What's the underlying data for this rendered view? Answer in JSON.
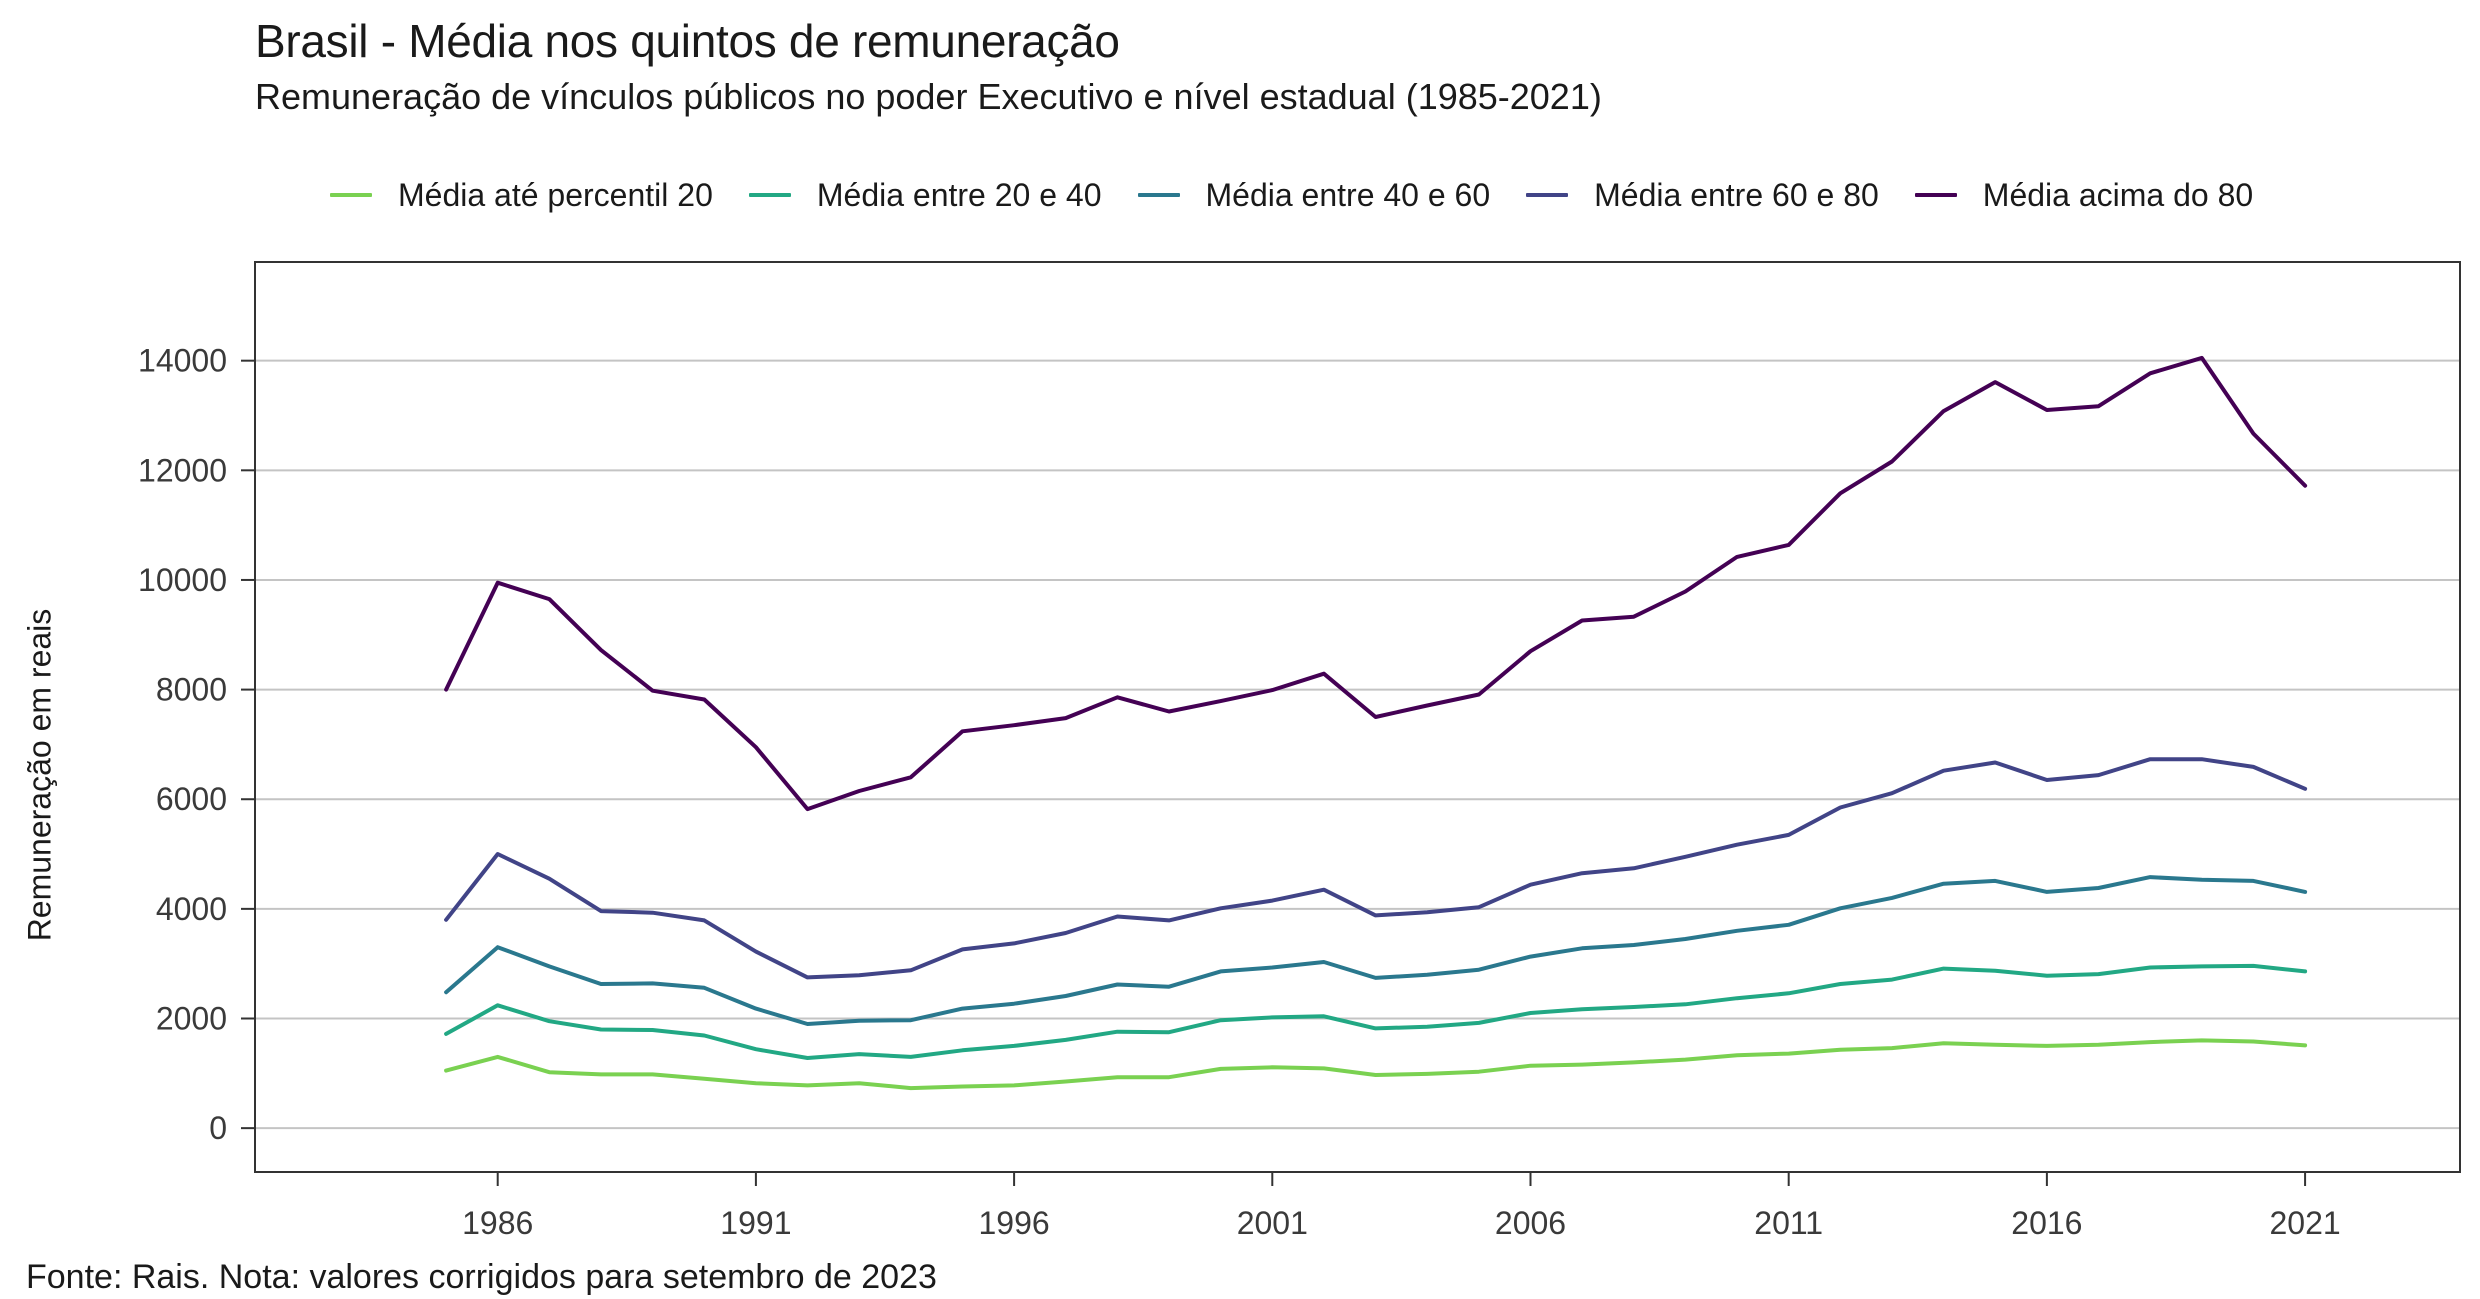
{
  "title": "Brasil - Média nos quintos de remuneração",
  "subtitle": "Remuneração de vínculos públicos no poder Executivo e nível estadual (1985-2021)",
  "caption": "Fonte: Rais. Nota: valores corrigidos para setembro de 2023",
  "chart_data": {
    "type": "line",
    "title": "Brasil - Média nos quintos de remuneração",
    "subtitle": "Remuneração de vínculos públicos no poder Executivo e nível estadual (1985-2021)",
    "xlabel": "",
    "ylabel": "Remuneração em reais",
    "xlim": [
      1981.3,
      2024.0
    ],
    "ylim": [
      -800,
      15800
    ],
    "xticks": [
      1986,
      1991,
      1996,
      2001,
      2006,
      2011,
      2016,
      2021
    ],
    "yticks": [
      0,
      2000,
      4000,
      6000,
      8000,
      10000,
      12000,
      14000
    ],
    "grid": "horizontal",
    "legend_position": "top",
    "x": [
      1985,
      1986,
      1987,
      1988,
      1989,
      1990,
      1991,
      1992,
      1993,
      1994,
      1995,
      1996,
      1997,
      1998,
      1999,
      2000,
      2001,
      2002,
      2003,
      2004,
      2005,
      2006,
      2007,
      2008,
      2009,
      2010,
      2011,
      2012,
      2013,
      2014,
      2015,
      2016,
      2017,
      2018,
      2019,
      2020,
      2021
    ],
    "series": [
      {
        "name": "Média até percentil 20",
        "color": "#7ad151",
        "values": [
          1050,
          1300,
          1020,
          980,
          980,
          900,
          820,
          780,
          820,
          730,
          760,
          780,
          850,
          930,
          930,
          1080,
          1110,
          1090,
          970,
          990,
          1030,
          1140,
          1160,
          1200,
          1250,
          1330,
          1360,
          1430,
          1460,
          1550,
          1520,
          1500,
          1520,
          1570,
          1600,
          1580,
          1510
        ]
      },
      {
        "name": "Média entre 20 e 40",
        "color": "#22a884",
        "values": [
          1720,
          2240,
          1950,
          1800,
          1790,
          1690,
          1440,
          1280,
          1350,
          1300,
          1420,
          1500,
          1610,
          1760,
          1750,
          1970,
          2020,
          2040,
          1820,
          1850,
          1920,
          2100,
          2170,
          2210,
          2260,
          2370,
          2460,
          2630,
          2710,
          2910,
          2870,
          2780,
          2810,
          2930,
          2950,
          2960,
          2860
        ]
      },
      {
        "name": "Média entre 40 e 60",
        "color": "#2a788e",
        "values": [
          2480,
          3300,
          2950,
          2630,
          2640,
          2560,
          2180,
          1900,
          1960,
          1970,
          2180,
          2270,
          2410,
          2620,
          2580,
          2860,
          2930,
          3030,
          2740,
          2800,
          2890,
          3130,
          3280,
          3340,
          3450,
          3600,
          3710,
          4010,
          4200,
          4460,
          4510,
          4310,
          4380,
          4580,
          4530,
          4510,
          4310
        ]
      },
      {
        "name": "Média entre 60 e 80",
        "color": "#414487",
        "values": [
          3800,
          5000,
          4550,
          3960,
          3930,
          3790,
          3220,
          2750,
          2790,
          2880,
          3260,
          3370,
          3560,
          3860,
          3790,
          4010,
          4150,
          4350,
          3880,
          3940,
          4030,
          4440,
          4650,
          4740,
          4950,
          5170,
          5350,
          5850,
          6110,
          6520,
          6670,
          6350,
          6440,
          6730,
          6730,
          6590,
          6190
        ]
      },
      {
        "name": "Média acima do 80",
        "color": "#440154",
        "values": [
          8000,
          9950,
          9650,
          8720,
          7980,
          7820,
          6950,
          5820,
          6150,
          6400,
          7240,
          7350,
          7480,
          7860,
          7600,
          7790,
          7990,
          8290,
          7500,
          7710,
          7910,
          8700,
          9260,
          9330,
          9790,
          10420,
          10640,
          11580,
          12160,
          13080,
          13610,
          13100,
          13170,
          13770,
          14050,
          12670,
          11720
        ]
      }
    ]
  }
}
